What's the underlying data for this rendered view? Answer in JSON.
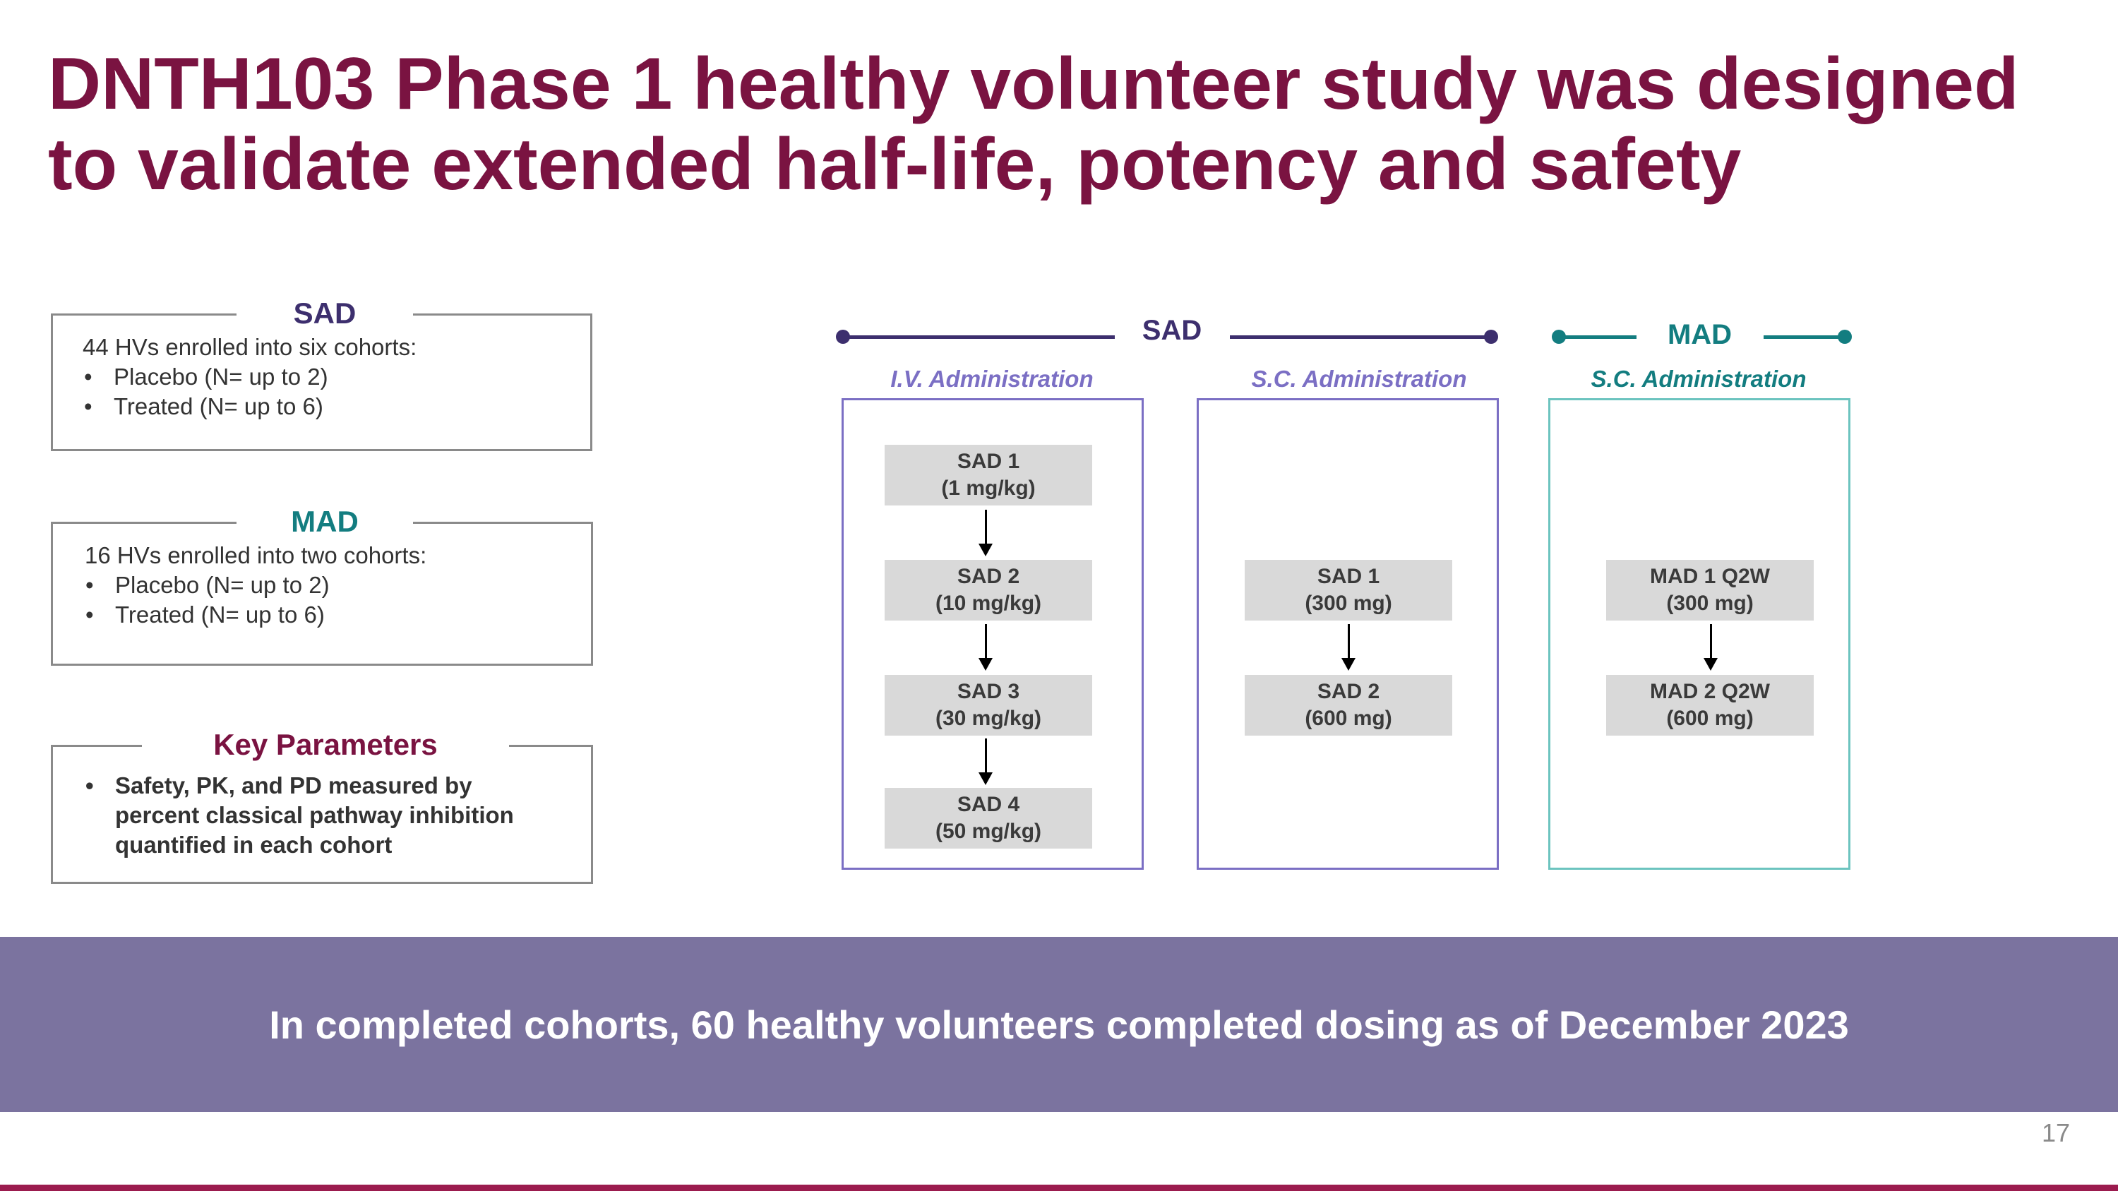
{
  "title_line1": "DNTH103 Phase 1 healthy volunteer study was designed",
  "title_line2": "to validate extended half-life, potency and safety",
  "boxes": {
    "sad": {
      "heading": "SAD",
      "intro": "44 HVs enrolled into six cohorts:",
      "bullets": [
        "Placebo (N= up to 2)",
        "Treated (N= up to 6)"
      ]
    },
    "mad": {
      "heading": "MAD",
      "intro": "16 HVs enrolled into two cohorts:",
      "bullets": [
        "Placebo (N= up to 2)",
        "Treated (N= up to 6)"
      ]
    },
    "key": {
      "heading": "Key Parameters",
      "lines": [
        "Safety, PK, and PD measured by",
        "percent classical pathway inhibition",
        "quantified in each cohort"
      ]
    }
  },
  "diagram": {
    "sad_label": "SAD",
    "mad_label": "MAD",
    "columns": [
      {
        "admin": "I.V. Administration",
        "cohorts": [
          {
            "name": "SAD 1",
            "dose": "(1 mg/kg)"
          },
          {
            "name": "SAD 2",
            "dose": "(10 mg/kg)"
          },
          {
            "name": "SAD 3",
            "dose": "(30 mg/kg)"
          },
          {
            "name": "SAD 4",
            "dose": "(50 mg/kg)"
          }
        ]
      },
      {
        "admin": "S.C. Administration",
        "cohorts": [
          {
            "name": "SAD 1",
            "dose": "(300 mg)"
          },
          {
            "name": "SAD 2",
            "dose": "(600 mg)"
          }
        ]
      },
      {
        "admin": "S.C. Administration",
        "cohorts": [
          {
            "name": "MAD 1 Q2W",
            "dose": "(300 mg)"
          },
          {
            "name": "MAD 2 Q2W",
            "dose": "(600 mg)"
          }
        ]
      }
    ]
  },
  "colors": {
    "title": "#7a1341",
    "sad": "#3d2f6e",
    "sad_admin": "#7b6fc4",
    "mad": "#137d80",
    "mad_box": "#6cc4bf",
    "banner": "#7b739f"
  },
  "banner_text": "In completed cohorts, 60 healthy volunteers completed dosing as of December 2023",
  "page_number": "17"
}
